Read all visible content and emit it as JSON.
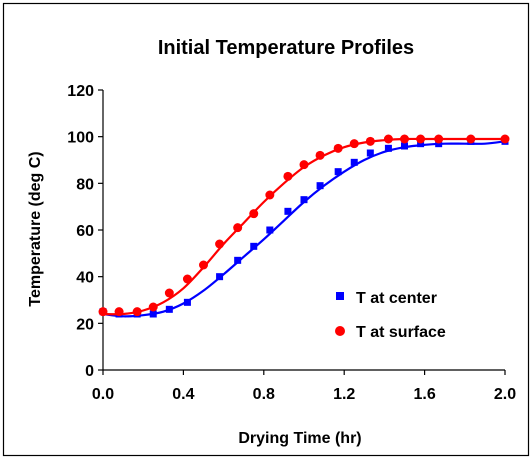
{
  "chart_data": {
    "type": "scatter",
    "title": "Initial Temperature Profiles",
    "xlabel": "Drying Time (hr)",
    "ylabel": "Temperature (deg C)",
    "xlim": [
      0.0,
      2.0
    ],
    "ylim": [
      0,
      120
    ],
    "xticks": [
      "0.0",
      "0.4",
      "0.8",
      "1.2",
      "1.6",
      "2.0"
    ],
    "yticks": [
      "0",
      "20",
      "40",
      "60",
      "80",
      "100",
      "120"
    ],
    "grid": false,
    "legend_position": "right",
    "series": [
      {
        "name": "T at center",
        "marker": "square",
        "color": "#0000ff",
        "x": [
          0.0,
          0.08,
          0.17,
          0.25,
          0.33,
          0.42,
          0.58,
          0.67,
          0.75,
          0.83,
          0.92,
          1.0,
          1.08,
          1.17,
          1.25,
          1.33,
          1.42,
          1.5,
          1.58,
          1.67,
          1.83,
          2.0
        ],
        "y": [
          25,
          24,
          24,
          24,
          26,
          29,
          40,
          47,
          53,
          60,
          68,
          73,
          79,
          85,
          89,
          93,
          95,
          96,
          97,
          97,
          98,
          98
        ],
        "fit_x": [
          0.0,
          0.1,
          0.2,
          0.3,
          0.4,
          0.5,
          0.6,
          0.7,
          0.8,
          0.9,
          1.0,
          1.1,
          1.2,
          1.3,
          1.4,
          1.5,
          1.6,
          1.7,
          1.8,
          1.9,
          2.0
        ],
        "fit_y": [
          24,
          23,
          23.5,
          25,
          28.5,
          34,
          41,
          48.5,
          56,
          64,
          72,
          79,
          85,
          90,
          93.5,
          95.5,
          96.5,
          97,
          97,
          97,
          98
        ]
      },
      {
        "name": "T at surface",
        "marker": "circle",
        "color": "#ff0000",
        "x": [
          0.0,
          0.08,
          0.17,
          0.25,
          0.33,
          0.42,
          0.5,
          0.58,
          0.67,
          0.75,
          0.83,
          0.92,
          1.0,
          1.08,
          1.17,
          1.25,
          1.33,
          1.42,
          1.5,
          1.58,
          1.67,
          1.83,
          2.0
        ],
        "y": [
          25,
          25,
          25,
          27,
          33,
          39,
          45,
          54,
          61,
          67,
          75,
          83,
          88,
          92,
          95,
          97,
          98,
          99,
          99,
          99,
          99,
          99,
          99
        ],
        "fit_x": [
          0.0,
          0.1,
          0.2,
          0.3,
          0.4,
          0.5,
          0.6,
          0.7,
          0.8,
          0.9,
          1.0,
          1.1,
          1.2,
          1.3,
          1.4,
          1.5,
          1.6,
          1.7,
          1.8,
          1.9,
          2.0
        ],
        "fit_y": [
          24,
          24,
          25.5,
          29,
          35,
          44,
          54,
          63,
          72,
          80,
          87,
          92,
          95.5,
          97.5,
          98.5,
          99,
          99,
          99,
          99,
          99,
          99
        ]
      }
    ]
  }
}
